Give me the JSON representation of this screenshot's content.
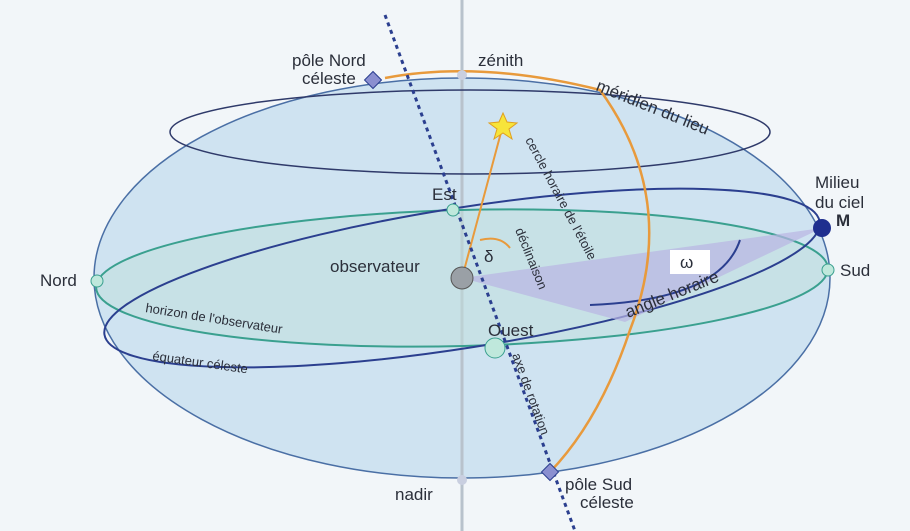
{
  "labels": {
    "pole_nord": [
      "pôle Nord",
      "céleste"
    ],
    "zenith": "zénith",
    "meridien": "méridien du lieu",
    "cercle_horaire": "cercle horaire de l'étoile",
    "milieu_ciel": [
      "Milieu",
      "du ciel"
    ],
    "m": "M",
    "est": "Est",
    "declinaison": "déclinaison",
    "delta": "δ",
    "observateur": "observateur",
    "omega": "ω",
    "nord": "Nord",
    "sud": "Sud",
    "angle_horaire": "angle horaire",
    "horizon": "horizon de l'observateur",
    "ouest": "Ouest",
    "equateur": "équateur céleste",
    "axe": "axe de rotation",
    "nadir": "nadir",
    "pole_sud": [
      "pôle Sud",
      "céleste"
    ]
  }
}
